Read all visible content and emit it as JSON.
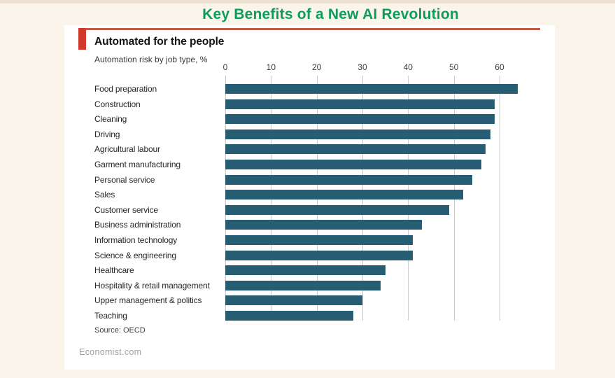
{
  "page": {
    "title": "Key Benefits of a New AI Revolution",
    "footer": "Economist.com"
  },
  "colors": {
    "page_title_green": "#0f9b59",
    "accent_red": "#d2382c",
    "rule_red": "#c4594c",
    "bar_teal": "#275d72",
    "gridline_gray": "#c9c9c9",
    "background_cream": "#fbf4ea",
    "card_white": "#ffffff"
  },
  "chart_data": {
    "type": "bar",
    "orientation": "horizontal",
    "title": "Automated for the people",
    "subtitle": "Automation risk by job type, %",
    "source": "Source: OECD",
    "categories": [
      "Food preparation",
      "Construction",
      "Cleaning",
      "Driving",
      "Agricultural labour",
      "Garment manufacturing",
      "Personal service",
      "Sales",
      "Customer service",
      "Business administration",
      "Information technology",
      "Science & engineering",
      "Healthcare",
      "Hospitality & retail management",
      "Upper management & politics",
      "Teaching"
    ],
    "values": [
      64,
      59,
      59,
      58,
      57,
      56,
      54,
      52,
      49,
      43,
      41,
      41,
      35,
      34,
      30,
      28
    ],
    "x_ticks": [
      0,
      10,
      20,
      30,
      40,
      50,
      60
    ],
    "xlim": [
      0,
      66
    ],
    "grid": "vertical-gridlines",
    "legend": "none",
    "value_labels": "none"
  }
}
